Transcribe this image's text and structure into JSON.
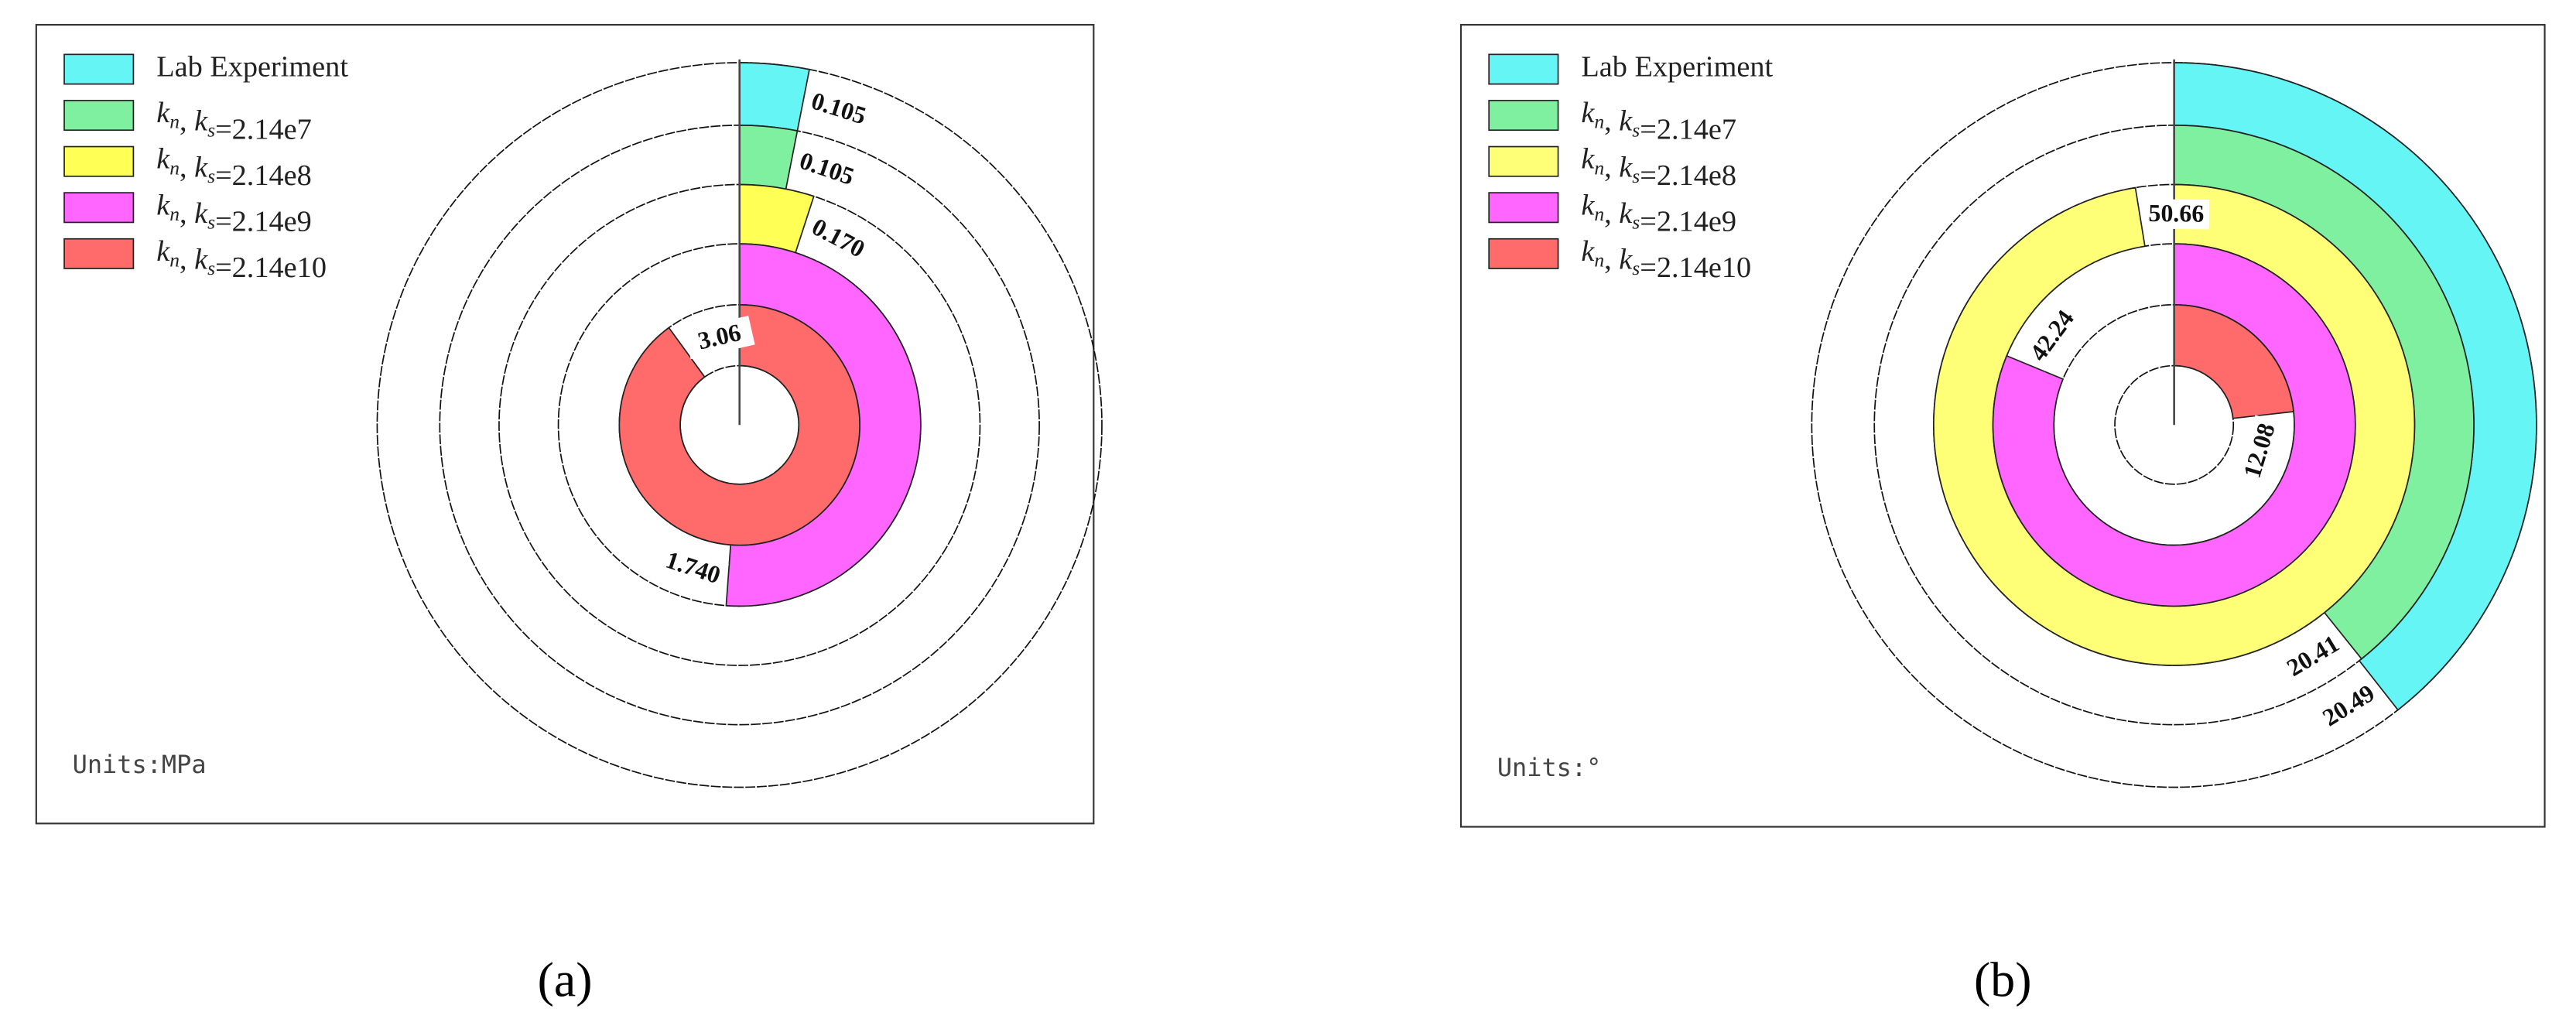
{
  "chart_data": [
    {
      "type": "radial_bar",
      "panel_label": "(a)",
      "units_label": "Units:MPa",
      "categories": [
        "Lab Experiment",
        "kn, ks=2.14e7",
        "kn, ks=2.14e8",
        "kn, ks=2.14e9",
        "kn, ks=2.14e10"
      ],
      "colors": [
        "#66f5f5",
        "#7ef0a0",
        "#ffff55",
        "#ff66ff",
        "#ff6a6a"
      ],
      "values": [
        0.105,
        0.105,
        0.17,
        1.74,
        3.06
      ],
      "value_labels": [
        "0.105",
        "0.105",
        "0.170",
        "1.740",
        "3.06"
      ],
      "rlim": [
        0,
        3.4
      ]
    },
    {
      "type": "radial_bar",
      "panel_label": "(b)",
      "units_label": "Units:°",
      "categories": [
        "Lab Experiment",
        "kn, ks=2.14e7",
        "kn, ks=2.14e8",
        "kn, ks=2.14e9",
        "kn, ks=2.14e10"
      ],
      "colors": [
        "#66f5f5",
        "#7ef0a0",
        "#ffff77",
        "#ff66ff",
        "#ff6a6a"
      ],
      "values": [
        20.49,
        20.41,
        50.66,
        42.24,
        12.08
      ],
      "value_labels": [
        "20.49",
        "20.41",
        "50.66",
        "42.24",
        "12.08"
      ],
      "rlim": [
        0,
        52
      ]
    }
  ]
}
